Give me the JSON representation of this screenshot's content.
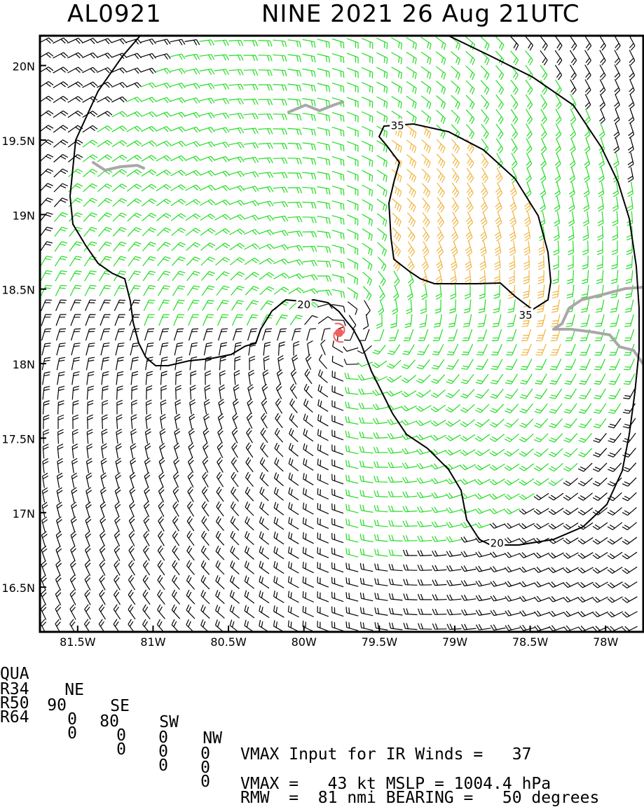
{
  "header": {
    "storm_id": "AL0921",
    "title": "NINE 2021 26 Aug 21UTC"
  },
  "map": {
    "lat_labels": [
      "20N",
      "19.5N",
      "19N",
      "18.5N",
      "18N",
      "17.5N",
      "17N",
      "16.5N"
    ],
    "lon_labels": [
      "81.5W",
      "81W",
      "80.5W",
      "80W",
      "79.5W",
      "79W",
      "78.5W",
      "78W"
    ],
    "lat_range": [
      16.2,
      20.2
    ],
    "lon_range": [
      -81.75,
      -77.75
    ],
    "contour_labels": [
      {
        "text": "35",
        "lon": -79.38,
        "lat": 19.6
      },
      {
        "text": "35",
        "lon": -78.53,
        "lat": 18.33
      },
      {
        "text": "20",
        "lon": -80.0,
        "lat": 18.4
      },
      {
        "text": "20",
        "lon": -78.72,
        "lat": 16.8
      }
    ],
    "storm_center": {
      "lon": -79.75,
      "lat": 18.2
    },
    "colors": {
      "below_34kt": "#000000",
      "34_to_50kt": "#22dd22",
      "50_to_64kt": "#f0b43c",
      "storm_symbol": "#f06060",
      "coastline": "#a8a8a8"
    }
  },
  "table": {
    "headers": [
      "QUA",
      "NE",
      "SE",
      "SW",
      "NW"
    ],
    "rows": [
      {
        "label": "R34",
        "values": [
          "90",
          "80",
          "0",
          "0"
        ]
      },
      {
        "label": "R50",
        "values": [
          "0",
          "0",
          "0",
          "0"
        ]
      },
      {
        "label": "R64",
        "values": [
          "0",
          "0",
          "0",
          "0"
        ]
      }
    ]
  },
  "info": {
    "line1": "VMAX Input for IR Winds =   37",
    "line2": "VMAX =   43 kt MSLP = 1004.4 hPa",
    "line3": "RMW  =  81 nmi BEARING =   50 degrees"
  }
}
